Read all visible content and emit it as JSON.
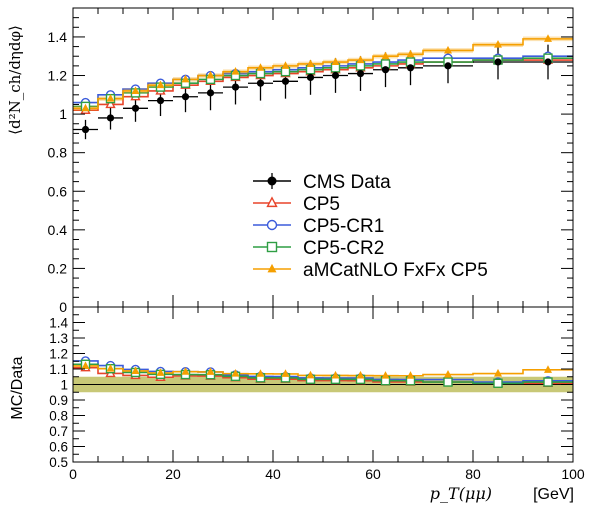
{
  "chart_data": [
    {
      "type": "line",
      "panel": "main",
      "ylabel": "⟨d²N_ch/dηdφ⟩",
      "ylim": [
        0,
        1.55
      ],
      "yticks": [
        0,
        0.2,
        0.4,
        0.6,
        0.8,
        1,
        1.2,
        1.4
      ],
      "ytick_labels": [
        "0",
        "0.2",
        "0.4",
        "0.6",
        "0.8",
        "1",
        "1.2",
        "1.4"
      ],
      "xlim": [
        0,
        100
      ],
      "bin_edges": [
        0,
        5,
        10,
        15,
        20,
        25,
        30,
        35,
        40,
        45,
        50,
        55,
        60,
        65,
        70,
        80,
        90,
        100
      ],
      "x": [
        2.5,
        7.5,
        12.5,
        17.5,
        22.5,
        27.5,
        32.5,
        37.5,
        42.5,
        47.5,
        52.5,
        57.5,
        62.5,
        67.5,
        75,
        85,
        95
      ],
      "legend": {
        "placement": "center-right"
      },
      "series": [
        {
          "name": "CMS Data",
          "color": "#000000",
          "marker": "circle-filled",
          "values": [
            0.92,
            0.98,
            1.03,
            1.07,
            1.09,
            1.11,
            1.14,
            1.16,
            1.17,
            1.19,
            1.2,
            1.21,
            1.23,
            1.24,
            1.25,
            1.27,
            1.27
          ],
          "errors": [
            0.05,
            0.06,
            0.07,
            0.08,
            0.08,
            0.09,
            0.09,
            0.09,
            0.09,
            0.09,
            0.09,
            0.09,
            0.09,
            0.09,
            0.09,
            0.09,
            0.09
          ]
        },
        {
          "name": "CP5",
          "color": "#e8442a",
          "marker": "triangle-open",
          "values": [
            1.02,
            1.05,
            1.09,
            1.12,
            1.15,
            1.17,
            1.19,
            1.2,
            1.21,
            1.22,
            1.23,
            1.24,
            1.25,
            1.26,
            1.27,
            1.28,
            1.28
          ]
        },
        {
          "name": "CP5-CR1",
          "color": "#3b5bdb",
          "marker": "circle-open",
          "values": [
            1.06,
            1.1,
            1.13,
            1.16,
            1.18,
            1.2,
            1.21,
            1.22,
            1.23,
            1.24,
            1.25,
            1.26,
            1.27,
            1.28,
            1.29,
            1.29,
            1.3
          ]
        },
        {
          "name": "CP5-CR2",
          "color": "#2f9e44",
          "marker": "square-open",
          "values": [
            1.04,
            1.08,
            1.11,
            1.14,
            1.16,
            1.18,
            1.2,
            1.21,
            1.22,
            1.23,
            1.24,
            1.25,
            1.26,
            1.27,
            1.27,
            1.28,
            1.29
          ]
        },
        {
          "name": "aMCatNLO FxFx CP5",
          "color": "#f59f00",
          "marker": "triangle-filled",
          "values": [
            1.03,
            1.08,
            1.12,
            1.15,
            1.18,
            1.2,
            1.22,
            1.24,
            1.25,
            1.26,
            1.27,
            1.28,
            1.3,
            1.31,
            1.33,
            1.36,
            1.39
          ]
        }
      ]
    },
    {
      "type": "line",
      "panel": "ratio",
      "ylabel": "MC/Data",
      "xlabel": "[GeV]",
      "xlabel_symbol": "p_T(μμ)",
      "ylim": [
        0.5,
        1.5
      ],
      "yticks": [
        0.5,
        0.6,
        0.7,
        0.8,
        0.9,
        1,
        1.1,
        1.2,
        1.3,
        1.4
      ],
      "ytick_labels": [
        "0.5",
        "0.6",
        "0.7",
        "0.8",
        "0.9",
        "1",
        "1.1",
        "1.2",
        "1.3",
        "1.4"
      ],
      "xlim": [
        0,
        100
      ],
      "xticks": [
        0,
        20,
        40,
        60,
        80,
        100
      ],
      "xtick_labels": [
        "0",
        "20",
        "40",
        "60",
        "80",
        "100"
      ],
      "uncertainty_band": [
        0.95,
        1.05
      ],
      "band_color": "#b5b54a"
    }
  ]
}
